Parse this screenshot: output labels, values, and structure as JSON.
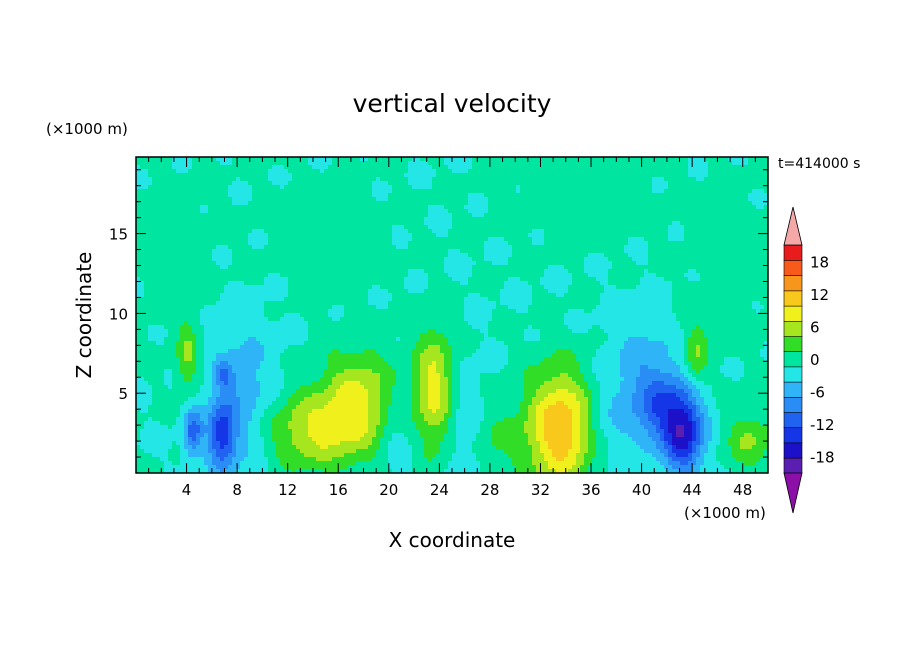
{
  "chart_data": {
    "type": "heatmap",
    "title": "vertical velocity",
    "xlabel": "X coordinate",
    "ylabel": "Z coordinate",
    "x_unit": "(×1000 m)",
    "y_unit": "(×1000 m)",
    "time_label": "t=414000 s",
    "xlim": [
      0,
      50
    ],
    "ylim": [
      0,
      19.8
    ],
    "x_ticks": [
      4,
      8,
      12,
      16,
      20,
      24,
      28,
      32,
      36,
      40,
      44,
      48
    ],
    "x_minor_step": 1,
    "y_ticks": [
      5,
      10,
      15
    ],
    "y_minor_step": 1,
    "colorbar": {
      "levels": [
        -21,
        -18,
        -15,
        -12,
        -9,
        -6,
        -3,
        0,
        3,
        6,
        9,
        12,
        15,
        18,
        21
      ],
      "tick_labels": [
        18,
        12,
        6,
        0,
        -6,
        -12,
        -18
      ],
      "colors": [
        "#5a1fb0",
        "#1c10c8",
        "#1536e6",
        "#1f63f0",
        "#2a8cf5",
        "#30b4f8",
        "#25e6e6",
        "#00e6a0",
        "#32dd28",
        "#a6e61e",
        "#f0f01c",
        "#f8c81c",
        "#f8961c",
        "#f85a1c",
        "#e81c1c"
      ],
      "under_color": "#8c10a8",
      "over_color": "#f4a8a8"
    },
    "features": [
      {
        "x": 33.6,
        "z": 2.8,
        "value": 15,
        "sx": 1.9,
        "sz": 2.6
      },
      {
        "x": 17.8,
        "z": 4.3,
        "value": 10,
        "sx": 2.3,
        "sz": 2.3
      },
      {
        "x": 13.5,
        "z": 2.6,
        "value": 8,
        "sx": 2.6,
        "sz": 1.7
      },
      {
        "x": 23.6,
        "z": 5.3,
        "value": 10,
        "sx": 1.1,
        "sz": 2.6
      },
      {
        "x": 4.1,
        "z": 7.3,
        "value": 6,
        "sx": 0.6,
        "sz": 1.7
      },
      {
        "x": 44.3,
        "z": 7.3,
        "value": 6,
        "sx": 0.7,
        "sz": 1.5
      },
      {
        "x": 48.6,
        "z": 2.0,
        "value": 6,
        "sx": 1.3,
        "sz": 1.3
      },
      {
        "x": 28.0,
        "z": 2.0,
        "value": 3,
        "sx": 2.0,
        "sz": 1.5
      },
      {
        "x": 43.4,
        "z": 2.5,
        "value": -15,
        "sx": 1.1,
        "sz": 1.8
      },
      {
        "x": 41.5,
        "z": 4.0,
        "value": -9,
        "sx": 1.5,
        "sz": 1.7
      },
      {
        "x": 6.8,
        "z": 2.4,
        "value": -12,
        "sx": 0.8,
        "sz": 1.5
      },
      {
        "x": 4.5,
        "z": 2.6,
        "value": -10,
        "sx": 0.5,
        "sz": 1.1
      },
      {
        "x": 7.0,
        "z": 6.1,
        "value": -7,
        "sx": 0.5,
        "sz": 0.6
      },
      {
        "x": 8.5,
        "z": 4.5,
        "value": -5,
        "sx": 1.9,
        "sz": 3.5
      },
      {
        "x": 40.0,
        "z": 6.5,
        "value": -4,
        "sx": 2.0,
        "sz": 2.5
      },
      {
        "x": 20.5,
        "z": 3.0,
        "value": -4,
        "sx": 1.2,
        "sz": 2.2
      },
      {
        "x": 26.0,
        "z": 2.5,
        "value": -4,
        "sx": 1.0,
        "sz": 2.5
      },
      {
        "x": 37.0,
        "z": 3.0,
        "value": -3,
        "sx": 1.5,
        "sz": 2.0
      },
      {
        "x": 15.0,
        "z": 15.0,
        "value": 1.5,
        "sx": 4.0,
        "sz": 3.0
      },
      {
        "x": 35.0,
        "z": 17.5,
        "value": 1.5,
        "sx": 5.0,
        "sz": 2.5
      },
      {
        "x": 3.0,
        "z": 14.0,
        "value": 1.5,
        "sx": 2.5,
        "sz": 4.0
      },
      {
        "x": 47.0,
        "z": 13.0,
        "value": 1.5,
        "sx": 2.5,
        "sz": 4.0
      }
    ]
  }
}
